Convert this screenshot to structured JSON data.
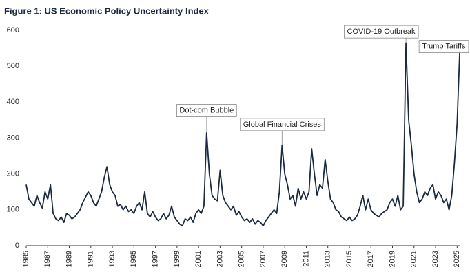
{
  "chart_data": {
    "type": "line",
    "title": "Figure 1: US Economic Policy Uncertainty Index",
    "x": [
      1985,
      1985.25,
      1985.5,
      1985.75,
      1986,
      1986.25,
      1986.5,
      1986.75,
      1987,
      1987.25,
      1987.5,
      1987.75,
      1988,
      1988.25,
      1988.5,
      1988.75,
      1989,
      1989.25,
      1989.5,
      1989.75,
      1990,
      1990.25,
      1990.5,
      1990.75,
      1991,
      1991.25,
      1991.5,
      1991.75,
      1992,
      1992.25,
      1992.5,
      1992.75,
      1993,
      1993.25,
      1993.5,
      1993.75,
      1994,
      1994.25,
      1994.5,
      1994.75,
      1995,
      1995.25,
      1995.5,
      1995.75,
      1996,
      1996.25,
      1996.5,
      1996.75,
      1997,
      1997.25,
      1997.5,
      1997.75,
      1998,
      1998.25,
      1998.5,
      1998.75,
      1999,
      1999.25,
      1999.5,
      1999.75,
      2000,
      2000.25,
      2000.5,
      2000.75,
      2001,
      2001.25,
      2001.5,
      2001.75,
      2002,
      2002.25,
      2002.5,
      2002.75,
      2003,
      2003.25,
      2003.5,
      2003.75,
      2004,
      2004.25,
      2004.5,
      2004.75,
      2005,
      2005.25,
      2005.5,
      2005.75,
      2006,
      2006.25,
      2006.5,
      2006.75,
      2007,
      2007.25,
      2007.5,
      2007.75,
      2008,
      2008.25,
      2008.5,
      2008.75,
      2009,
      2009.25,
      2009.5,
      2009.75,
      2010,
      2010.25,
      2010.5,
      2010.75,
      2011,
      2011.25,
      2011.5,
      2011.75,
      2012,
      2012.25,
      2012.5,
      2012.75,
      2013,
      2013.25,
      2013.5,
      2013.75,
      2014,
      2014.25,
      2014.5,
      2014.75,
      2015,
      2015.25,
      2015.5,
      2015.75,
      2016,
      2016.25,
      2016.5,
      2016.75,
      2017,
      2017.25,
      2017.5,
      2017.75,
      2018,
      2018.25,
      2018.5,
      2018.75,
      2019,
      2019.25,
      2019.5,
      2019.75,
      2020,
      2020.25,
      2020.5,
      2020.75,
      2021,
      2021.25,
      2021.5,
      2021.75,
      2022,
      2022.25,
      2022.5,
      2022.75,
      2023,
      2023.25,
      2023.5,
      2023.75,
      2024,
      2024.25,
      2024.5,
      2024.75,
      2025,
      2025.25
    ],
    "series": [
      {
        "color": "#1b2a41",
        "values": [
          170,
          130,
          120,
          110,
          140,
          120,
          105,
          150,
          130,
          170,
          90,
          75,
          70,
          80,
          65,
          90,
          85,
          75,
          80,
          90,
          100,
          120,
          135,
          150,
          140,
          120,
          110,
          130,
          150,
          190,
          220,
          170,
          150,
          140,
          110,
          115,
          100,
          110,
          95,
          100,
          90,
          110,
          120,
          100,
          150,
          90,
          80,
          95,
          80,
          70,
          75,
          90,
          75,
          85,
          110,
          80,
          70,
          60,
          55,
          75,
          70,
          80,
          65,
          90,
          100,
          90,
          110,
          315,
          200,
          140,
          130,
          125,
          210,
          140,
          120,
          110,
          100,
          110,
          85,
          95,
          80,
          70,
          75,
          65,
          75,
          60,
          70,
          65,
          55,
          70,
          80,
          90,
          100,
          90,
          150,
          280,
          200,
          170,
          130,
          140,
          110,
          160,
          130,
          150,
          130,
          150,
          270,
          200,
          140,
          170,
          160,
          240,
          180,
          130,
          120,
          100,
          95,
          80,
          75,
          70,
          80,
          70,
          75,
          85,
          110,
          140,
          100,
          130,
          100,
          90,
          85,
          80,
          90,
          95,
          100,
          120,
          130,
          110,
          140,
          100,
          110,
          565,
          350,
          280,
          200,
          150,
          120,
          130,
          150,
          140,
          160,
          170,
          130,
          150,
          140,
          120,
          130,
          100,
          140,
          230,
          340,
          545
        ]
      }
    ],
    "xlim": [
      1985,
      2025.3
    ],
    "xticks": [
      1985,
      1987,
      1989,
      1991,
      1993,
      1995,
      1997,
      1999,
      2001,
      2003,
      2005,
      2007,
      2009,
      2011,
      2013,
      2015,
      2017,
      2019,
      2021,
      2023,
      2025
    ],
    "ylim": [
      0,
      600
    ],
    "yticks": [
      0,
      100,
      200,
      300,
      400,
      500,
      600
    ],
    "annotations": [
      {
        "text": "Dot-com Bubble",
        "x": 2001.75,
        "y": 315
      },
      {
        "text": "Global Financial Crises",
        "x": 2008.75,
        "y": 280
      },
      {
        "text": "COVID-19 Outbreak",
        "x": 2020.25,
        "y": 565
      },
      {
        "text": "Trump Tariffs",
        "x": 2025.25,
        "y": 545
      }
    ]
  }
}
